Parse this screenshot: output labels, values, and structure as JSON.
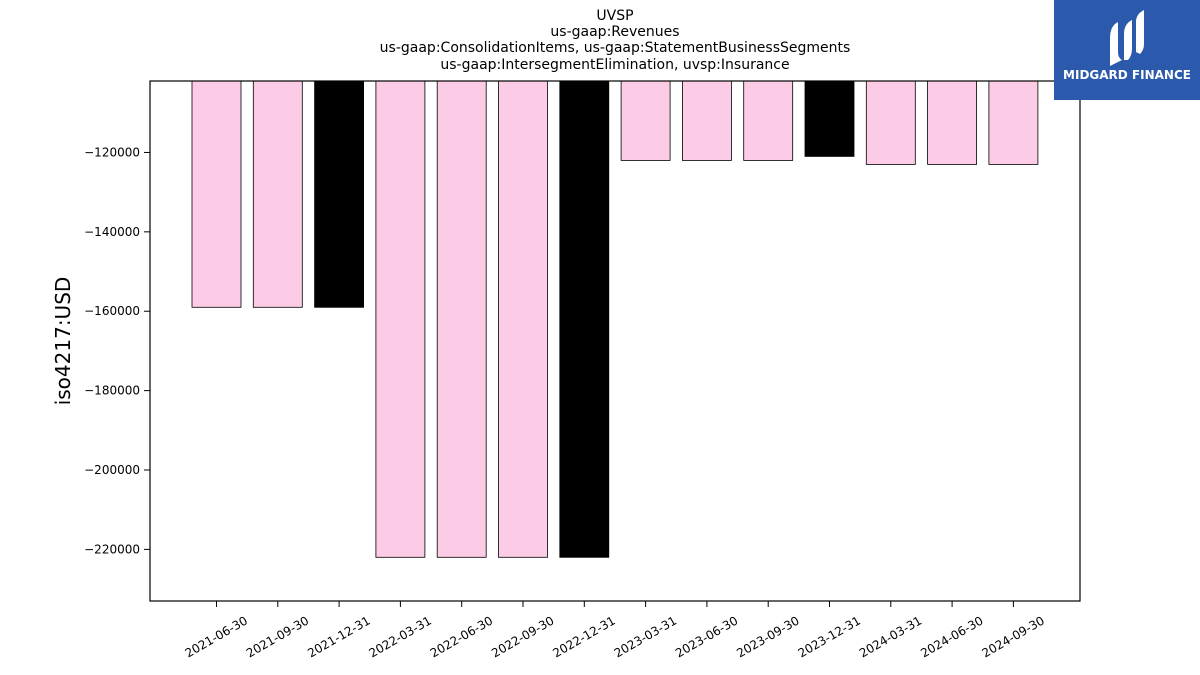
{
  "brand": {
    "name": "MIDGARD FINANCE",
    "logo_icon": "midgard-finance-m-logo",
    "background_color": "#2b5aad"
  },
  "chart_data": {
    "type": "bar",
    "title_lines": [
      "UVSP",
      "us-gaap:Revenues",
      "us-gaap:ConsolidationItems, us-gaap:StatementBusinessSegments",
      "us-gaap:IntersegmentElimination, uvsp:Insurance"
    ],
    "xlabel": "",
    "ylabel": "iso4217:USD",
    "categories": [
      "2021-06-30",
      "2021-09-30",
      "2021-12-31",
      "2022-03-31",
      "2022-06-30",
      "2022-09-30",
      "2022-12-31",
      "2023-03-31",
      "2023-06-30",
      "2023-09-30",
      "2023-12-31",
      "2024-03-31",
      "2024-06-30",
      "2024-09-30"
    ],
    "values": [
      -159000,
      -159000,
      -159000,
      -222000,
      -222000,
      -222000,
      -222000,
      -122000,
      -122000,
      -122000,
      -121000,
      -123000,
      -123000,
      -123000
    ],
    "bar_colors": [
      "#fccbe5",
      "#fccbe5",
      "#000000",
      "#fccbe5",
      "#fccbe5",
      "#fccbe5",
      "#000000",
      "#fccbe5",
      "#fccbe5",
      "#fccbe5",
      "#000000",
      "#fccbe5",
      "#fccbe5",
      "#fccbe5"
    ],
    "ylim": [
      -233000,
      -102000
    ],
    "yticks": [
      -120000,
      -140000,
      -160000,
      -180000,
      -200000,
      -220000
    ],
    "ytick_labels": [
      "−120000",
      "−140000",
      "−160000",
      "−180000",
      "−200000",
      "−220000"
    ],
    "grid": false,
    "legend": "none"
  }
}
